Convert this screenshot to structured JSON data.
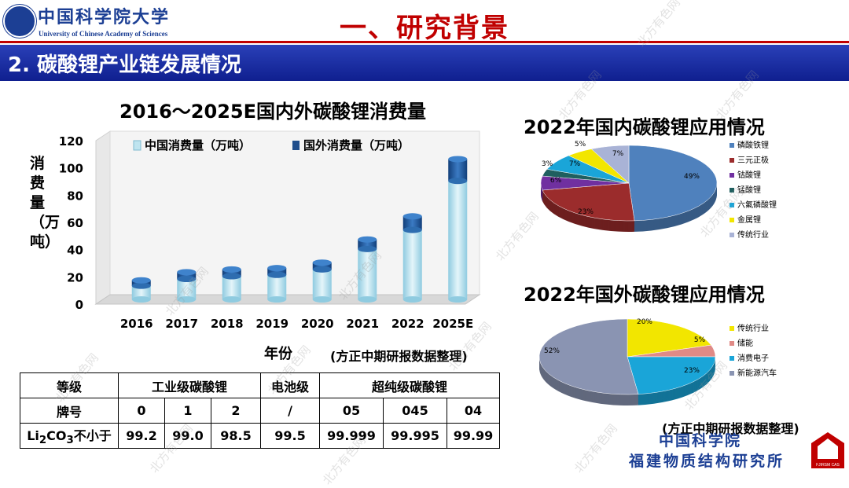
{
  "header": {
    "logo_cn": "中国科学院大学",
    "logo_en": "University of Chinese Academy of Sciences",
    "title": "一、研究背景"
  },
  "section": {
    "title": "2. 碳酸锂产业链发展情况"
  },
  "bar_chart": {
    "title": "2016～2025E国内外碳酸锂消费量",
    "ylabel": "消费量（万吨）",
    "xlabel": "年份",
    "source": "(方正中期研报数据整理)",
    "legend": [
      "中国消费量（万吨）",
      "国外消费量（万吨）"
    ],
    "colors": {
      "china": "#bfe4ef",
      "abroad": "#1f4e8c"
    }
  },
  "chart_data": [
    {
      "type": "bar",
      "title": "2016～2025E国内外碳酸锂消费量",
      "xlabel": "年份",
      "ylabel": "消费量（万吨）",
      "categories": [
        "2016",
        "2017",
        "2018",
        "2019",
        "2020",
        "2021",
        "2022",
        "2025E"
      ],
      "series": [
        {
          "name": "中国消费量（万吨）",
          "values": [
            10,
            15,
            17,
            18,
            22,
            37,
            51,
            87
          ]
        },
        {
          "name": "国外消费量（万吨）",
          "values": [
            4,
            5,
            5,
            5,
            5,
            7,
            10,
            16
          ]
        }
      ],
      "stacked": true,
      "ylim": [
        0,
        120
      ],
      "yticks": [
        0,
        20,
        40,
        60,
        80,
        100,
        120
      ],
      "grid": false,
      "legend_position": "top"
    },
    {
      "type": "pie",
      "title": "2022年国内碳酸锂应用情况",
      "labels": [
        "磷酸铁锂",
        "三元正极",
        "钴酸锂",
        "锰酸锂",
        "六氟磷酸锂",
        "金属锂",
        "传统行业"
      ],
      "values": [
        49,
        23,
        6,
        3,
        7,
        5,
        7
      ],
      "value_labels": [
        "49%",
        "23%",
        "6%",
        "3%",
        "7%",
        "5%",
        "7%"
      ],
      "colors": [
        "#4f81bd",
        "#9b2c2c",
        "#7030a0",
        "#1f5f5f",
        "#1aa5d8",
        "#f2e600",
        "#a9b3d6"
      ],
      "legend_position": "right"
    },
    {
      "type": "pie",
      "title": "2022年国外碳酸锂应用情况",
      "labels": [
        "传统行业",
        "储能",
        "消费电子",
        "新能源汽车"
      ],
      "values": [
        20,
        5,
        23,
        52
      ],
      "value_labels": [
        "20%",
        "5%",
        "23%",
        "52%"
      ],
      "colors": [
        "#f2e600",
        "#e08a86",
        "#1aa5d8",
        "#8a94b2"
      ],
      "legend_position": "right"
    }
  ],
  "pie1": {
    "title": "2022年国内碳酸锂应用情况"
  },
  "pie2": {
    "title": "2022年国外碳酸锂应用情况",
    "source": "(方正中期研报数据整理)"
  },
  "table": {
    "row1": [
      "等级",
      "工业级碳酸锂",
      "电池级",
      "超纯级碳酸锂"
    ],
    "row2": [
      "牌号",
      "0",
      "1",
      "2",
      "/",
      "05",
      "045",
      "04"
    ],
    "row3_label_pre": "Li",
    "row3_label_sub1": "2",
    "row3_label_mid": "CO",
    "row3_label_sub2": "3",
    "row3_label_post": "不小于",
    "row3": [
      "99.2",
      "99.0",
      "98.5",
      "99.5",
      "99.999",
      "99.995",
      "99.99"
    ]
  },
  "institute": {
    "line1": "中国科学院",
    "line2": "福建物质结构研究所",
    "badge": "FJIRSM CAS"
  },
  "watermark": "北方有色网"
}
